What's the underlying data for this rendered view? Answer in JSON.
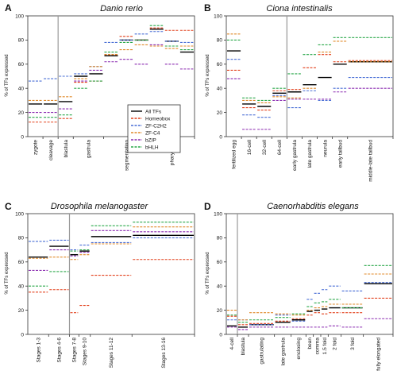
{
  "colors": {
    "All TFs": "#000000",
    "Homeobox": "#e2401c",
    "ZF-C2H2": "#4a6fd6",
    "ZF-C4": "#e08a2a",
    "bZIP": "#8a2ab0",
    "bHLH": "#2aa84a"
  },
  "chart_data": [
    {
      "type": "line",
      "panel": "A",
      "title": "Danio rerio",
      "ylabel": "% of TFs expressed",
      "ylim": [
        0,
        100
      ],
      "yticks": [
        0,
        20,
        40,
        60,
        80,
        100
      ],
      "divider_after": 2,
      "stages": [
        {
          "label": "zygote",
          "x": [
            0,
            1
          ]
        },
        {
          "label": "cleavage",
          "x": [
            1,
            2
          ]
        },
        {
          "label": "blastula",
          "x": [
            2,
            3
          ]
        },
        {
          "label": "gastrula",
          "x": [
            3,
            5
          ]
        },
        {
          "label": "segmentation",
          "x": [
            5,
            8
          ]
        },
        {
          "label": "pharyngula",
          "x": [
            8,
            11
          ]
        }
      ],
      "segments": [
        [
          0,
          1
        ],
        [
          1,
          2
        ],
        [
          2,
          3
        ],
        [
          3,
          4
        ],
        [
          4,
          5
        ],
        [
          5,
          6
        ],
        [
          6,
          7
        ],
        [
          7,
          8
        ],
        [
          8,
          9
        ],
        [
          9,
          10
        ],
        [
          10,
          11
        ]
      ],
      "series": [
        {
          "name": "All TFs",
          "values": [
            27,
            27,
            29,
            50,
            52,
            67,
            80,
            80,
            89,
            79,
            70
          ]
        },
        {
          "name": "Homeobox",
          "values": [
            12,
            12,
            15,
            45,
            46,
            68,
            83,
            80,
            90,
            88,
            88
          ]
        },
        {
          "name": "ZF-C2H2",
          "values": [
            46,
            48,
            50,
            52,
            58,
            78,
            80,
            85,
            87,
            79,
            78
          ]
        },
        {
          "name": "ZF-C4",
          "values": [
            30,
            30,
            33,
            48,
            58,
            68,
            72,
            76,
            75,
            73,
            75
          ]
        },
        {
          "name": "bZIP",
          "values": [
            20,
            20,
            23,
            46,
            55,
            62,
            64,
            60,
            76,
            60,
            56
          ]
        },
        {
          "name": "bHLH",
          "values": [
            16,
            16,
            18,
            40,
            46,
            70,
            78,
            80,
            92,
            75,
            72
          ]
        }
      ],
      "legend": [
        "All TFs",
        "Homeobox",
        "ZF-C2H2",
        "ZF-C4",
        "bZIP",
        "bHLH"
      ],
      "legend_position": "bottom-right"
    },
    {
      "type": "line",
      "panel": "B",
      "title": "Ciona intestinalis",
      "ylabel": "% of TFs expressed",
      "ylim": [
        0,
        100
      ],
      "yticks": [
        0,
        20,
        40,
        60,
        80,
        100
      ],
      "divider_after": 4,
      "stages": [
        {
          "label": "fertilized egg",
          "x": [
            0,
            1
          ]
        },
        {
          "label": "16-cell",
          "x": [
            1,
            2
          ]
        },
        {
          "label": "32-cell",
          "x": [
            2,
            3
          ]
        },
        {
          "label": "64-cell",
          "x": [
            3,
            4
          ]
        },
        {
          "label": "early gastrula",
          "x": [
            4,
            5
          ]
        },
        {
          "label": "late gastrula",
          "x": [
            5,
            6
          ]
        },
        {
          "label": "neurula",
          "x": [
            6,
            7
          ]
        },
        {
          "label": "early tailbud",
          "x": [
            7,
            8
          ]
        },
        {
          "label": "middle-late tailbud",
          "x": [
            8,
            11
          ]
        }
      ],
      "segments": [
        [
          0,
          1
        ],
        [
          1,
          2
        ],
        [
          2,
          3
        ],
        [
          3,
          4
        ],
        [
          4,
          5
        ],
        [
          5,
          6
        ],
        [
          6,
          7
        ],
        [
          7,
          8
        ],
        [
          8,
          11
        ]
      ],
      "series": [
        {
          "name": "All TFs",
          "values": [
            71,
            27,
            25,
            36,
            37,
            43,
            49,
            60,
            62
          ]
        },
        {
          "name": "Homeobox",
          "values": [
            55,
            24,
            22,
            38,
            39,
            57,
            68,
            62,
            63
          ]
        },
        {
          "name": "ZF-C2H2",
          "values": [
            64,
            18,
            16,
            34,
            24,
            38,
            30,
            40,
            49
          ]
        },
        {
          "name": "ZF-C4",
          "values": [
            85,
            30,
            28,
            33,
            32,
            40,
            70,
            79,
            62
          ]
        },
        {
          "name": "bZIP",
          "values": [
            48,
            6,
            6,
            30,
            31,
            31,
            31,
            37,
            40
          ]
        },
        {
          "name": "bHLH",
          "values": [
            80,
            32,
            30,
            40,
            52,
            68,
            76,
            82,
            82
          ]
        }
      ],
      "legend": [],
      "legend_position": "none"
    },
    {
      "type": "line",
      "panel": "C",
      "title": "Drosophila melanogaster",
      "ylabel": "% of TFs expressed",
      "ylim": [
        0,
        100
      ],
      "yticks": [
        0,
        20,
        40,
        60,
        80,
        100
      ],
      "divider_after": 2,
      "stages": [
        {
          "label": "Stages 1-3",
          "x": [
            0,
            1
          ]
        },
        {
          "label": "Stages 4-6",
          "x": [
            1,
            2
          ]
        },
        {
          "label": "Stages 7-8",
          "x": [
            2,
            2.45
          ]
        },
        {
          "label": "Stages 9-10",
          "x": [
            2.45,
            3
          ]
        },
        {
          "label": "Stages 11-12",
          "x": [
            3,
            5
          ]
        },
        {
          "label": "Stages 13-16",
          "x": [
            5,
            8
          ]
        }
      ],
      "segments": [
        [
          0,
          1
        ],
        [
          1,
          2
        ],
        [
          2,
          2.45
        ],
        [
          2.45,
          3
        ],
        [
          3,
          5
        ],
        [
          5,
          8
        ]
      ],
      "series": [
        {
          "name": "All TFs",
          "values": [
            64,
            73,
            66,
            69,
            81,
            82
          ]
        },
        {
          "name": "Homeobox",
          "values": [
            35,
            37,
            18,
            24,
            49,
            62
          ]
        },
        {
          "name": "ZF-C2H2",
          "values": [
            77,
            78,
            70,
            74,
            76,
            80
          ]
        },
        {
          "name": "ZF-C4",
          "values": [
            63,
            64,
            62,
            66,
            75,
            89
          ]
        },
        {
          "name": "bZIP",
          "values": [
            53,
            70,
            65,
            68,
            86,
            85
          ]
        },
        {
          "name": "bHLH",
          "values": [
            40,
            52,
            69,
            70,
            90,
            93
          ]
        }
      ],
      "legend": [],
      "legend_position": "none"
    },
    {
      "type": "line",
      "panel": "D",
      "title": "Caenorhabditis elegans",
      "ylabel": "% of TFs expressed",
      "ylim": [
        0,
        100
      ],
      "yticks": [
        0,
        20,
        40,
        60,
        80,
        100
      ],
      "divider_after": 1,
      "stages": [
        {
          "label": "4-cell",
          "x": [
            0,
            0.6
          ]
        },
        {
          "label": "blastula",
          "x": [
            0.6,
            1.2
          ]
        },
        {
          "label": "gastrulating",
          "x": [
            1.2,
            2.6
          ]
        },
        {
          "label": "late gastrula",
          "x": [
            2.6,
            3.5
          ]
        },
        {
          "label": "enclosing",
          "x": [
            3.5,
            4.3
          ]
        },
        {
          "label": "bean",
          "x": [
            4.3,
            4.7
          ]
        },
        {
          "label": "comma",
          "x": [
            4.7,
            5.1
          ]
        },
        {
          "label": "1.5 fold",
          "x": [
            5.1,
            5.5
          ]
        },
        {
          "label": "2 fold",
          "x": [
            5.5,
            6.2
          ]
        },
        {
          "label": "3 fold",
          "x": [
            6.2,
            7.4
          ]
        },
        {
          "label": "fully elongated",
          "x": [
            7.4,
            9
          ]
        }
      ],
      "segments": [
        [
          0,
          0.6
        ],
        [
          0.6,
          1.2
        ],
        [
          1.2,
          2.6
        ],
        [
          2.6,
          3.5
        ],
        [
          3.5,
          4.3
        ],
        [
          4.3,
          4.7
        ],
        [
          4.7,
          5.1
        ],
        [
          5.1,
          5.5
        ],
        [
          5.5,
          6.2
        ],
        [
          6.2,
          7.4
        ],
        [
          7.4,
          9
        ]
      ],
      "series": [
        {
          "name": "All TFs",
          "values": [
            7,
            6,
            8,
            10,
            12,
            19,
            20,
            21,
            22,
            22,
            42
          ]
        },
        {
          "name": "Homeobox",
          "values": [
            15,
            8,
            9,
            11,
            13,
            16,
            18,
            17,
            18,
            18,
            30
          ]
        },
        {
          "name": "ZF-C2H2",
          "values": [
            12,
            12,
            8,
            16,
            11,
            29,
            34,
            37,
            40,
            36,
            43
          ]
        },
        {
          "name": "ZF-C4",
          "values": [
            20,
            12,
            18,
            17,
            16,
            20,
            22,
            23,
            25,
            25,
            50
          ]
        },
        {
          "name": "bZIP",
          "values": [
            6,
            4,
            6,
            6,
            6,
            6,
            6,
            6,
            7,
            6,
            13
          ]
        },
        {
          "name": "bHLH",
          "values": [
            16,
            10,
            12,
            14,
            17,
            23,
            26,
            27,
            29,
            22,
            57
          ]
        }
      ],
      "legend": [],
      "legend_position": "none"
    }
  ]
}
